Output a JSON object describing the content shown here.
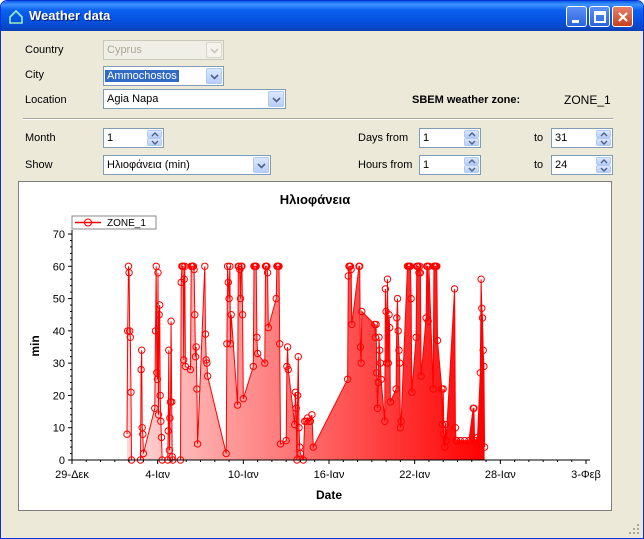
{
  "window": {
    "title": "Weather data"
  },
  "form": {
    "country_label": "Country",
    "country_value": "Cyprus",
    "city_label": "City",
    "city_value": "Ammochostos",
    "location_label": "Location",
    "location_value": "Agia Napa",
    "zone_label": "SBEM weather zone:",
    "zone_value": "ZONE_1",
    "month_label": "Month",
    "month_value": "1",
    "show_label": "Show",
    "show_value": "Ηλιοφάνεια (min)",
    "days_from_label": "Days from",
    "days_from_value": "1",
    "days_to_label": "to",
    "days_to_value": "31",
    "hours_from_label": "Hours from",
    "hours_from_value": "1",
    "hours_to_label": "to",
    "hours_to_value": "24"
  },
  "colors": {
    "series": "#ff0000",
    "fill_light": "#ffd8d8",
    "fill_dark": "#ff0000",
    "titlebar": "#0554e3"
  },
  "chart_data": {
    "type": "area",
    "title": "Ηλιοφάνεια",
    "xlabel": "Date",
    "ylabel": "min",
    "xlim": [
      0,
      36
    ],
    "ylim": [
      0,
      70
    ],
    "x_ticks": [
      0,
      6,
      12,
      18,
      24,
      30,
      36
    ],
    "x_tick_labels": [
      "29-Δεκ",
      "4-Ιαν",
      "10-Ιαν",
      "16-Ιαν",
      "22-Ιαν",
      "28-Ιαν",
      "3-Φεβ"
    ],
    "y_ticks": [
      0,
      10,
      20,
      30,
      40,
      50,
      60,
      70
    ],
    "legend": "top-left",
    "grid": false,
    "series": [
      {
        "name": "ZONE_1",
        "points": [
          [
            3.85,
            8
          ],
          [
            3.9,
            40
          ],
          [
            3.96,
            60
          ],
          [
            4.0,
            58
          ],
          [
            4.04,
            40
          ],
          [
            4.08,
            38
          ],
          [
            4.13,
            21
          ],
          [
            4.17,
            0
          ],
          [
            4.8,
            0
          ],
          [
            4.84,
            28
          ],
          [
            4.88,
            34
          ],
          [
            4.92,
            10
          ],
          [
            4.96,
            8
          ],
          [
            5.0,
            2
          ],
          [
            5.8,
            16
          ],
          [
            5.85,
            40
          ],
          [
            5.9,
            60
          ],
          [
            5.94,
            27
          ],
          [
            5.98,
            25
          ],
          [
            6.02,
            58
          ],
          [
            6.06,
            14
          ],
          [
            6.1,
            45
          ],
          [
            6.14,
            48
          ],
          [
            6.18,
            20
          ],
          [
            6.22,
            12
          ],
          [
            6.27,
            7
          ],
          [
            6.32,
            0
          ],
          [
            6.7,
            0
          ],
          [
            6.74,
            9
          ],
          [
            6.78,
            34
          ],
          [
            6.82,
            3
          ],
          [
            6.86,
            13
          ],
          [
            6.9,
            18
          ],
          [
            6.94,
            43
          ],
          [
            6.98,
            18
          ],
          [
            7.02,
            1
          ],
          [
            7.06,
            0
          ],
          [
            7.6,
            0
          ],
          [
            7.65,
            55
          ],
          [
            7.7,
            60
          ],
          [
            7.74,
            60
          ],
          [
            7.78,
            60
          ],
          [
            7.82,
            31
          ],
          [
            7.86,
            56
          ],
          [
            7.9,
            60
          ],
          [
            7.94,
            29
          ],
          [
            8.3,
            28
          ],
          [
            8.35,
            60
          ],
          [
            8.4,
            60
          ],
          [
            8.45,
            60
          ],
          [
            8.5,
            60
          ],
          [
            8.55,
            59
          ],
          [
            8.6,
            45
          ],
          [
            8.65,
            32
          ],
          [
            8.7,
            35
          ],
          [
            8.75,
            22
          ],
          [
            8.8,
            5
          ],
          [
            9.3,
            60
          ],
          [
            9.35,
            39
          ],
          [
            9.4,
            31
          ],
          [
            9.45,
            30
          ],
          [
            9.5,
            26
          ],
          [
            10.8,
            2
          ],
          [
            10.85,
            36
          ],
          [
            10.9,
            60
          ],
          [
            10.95,
            55
          ],
          [
            11.0,
            50
          ],
          [
            11.05,
            60
          ],
          [
            11.1,
            36
          ],
          [
            11.15,
            45
          ],
          [
            11.6,
            17
          ],
          [
            11.65,
            60
          ],
          [
            11.7,
            60
          ],
          [
            11.75,
            59
          ],
          [
            11.8,
            50
          ],
          [
            11.85,
            60
          ],
          [
            11.9,
            60
          ],
          [
            11.95,
            45
          ],
          [
            12.0,
            19
          ],
          [
            12.7,
            29
          ],
          [
            12.75,
            60
          ],
          [
            12.8,
            60
          ],
          [
            12.85,
            60
          ],
          [
            12.9,
            60
          ],
          [
            12.95,
            38
          ],
          [
            13.0,
            33
          ],
          [
            13.5,
            30
          ],
          [
            13.55,
            60
          ],
          [
            13.6,
            60
          ],
          [
            13.65,
            60
          ],
          [
            13.7,
            58
          ],
          [
            13.75,
            41
          ],
          [
            14.3,
            50
          ],
          [
            14.35,
            60
          ],
          [
            14.4,
            60
          ],
          [
            14.45,
            60
          ],
          [
            14.5,
            60
          ],
          [
            14.55,
            36
          ],
          [
            14.6,
            5
          ],
          [
            15.0,
            6
          ],
          [
            15.05,
            29
          ],
          [
            15.1,
            35
          ],
          [
            15.15,
            28
          ],
          [
            15.6,
            11
          ],
          [
            15.65,
            21
          ],
          [
            15.7,
            16
          ],
          [
            15.75,
            0
          ],
          [
            15.8,
            20
          ],
          [
            15.85,
            32
          ],
          [
            15.9,
            10
          ],
          [
            15.95,
            4
          ],
          [
            16.0,
            2
          ],
          [
            16.2,
            0
          ],
          [
            16.3,
            12
          ],
          [
            16.4,
            12
          ],
          [
            16.5,
            13
          ],
          [
            16.6,
            12
          ],
          [
            16.7,
            12
          ],
          [
            16.8,
            14
          ],
          [
            16.9,
            4
          ],
          [
            19.3,
            25
          ],
          [
            19.35,
            57
          ],
          [
            19.4,
            60
          ],
          [
            19.45,
            60
          ],
          [
            19.5,
            60
          ],
          [
            19.55,
            59
          ],
          [
            19.6,
            42
          ],
          [
            20.1,
            60
          ],
          [
            20.15,
            60
          ],
          [
            20.2,
            35
          ],
          [
            20.25,
            30
          ],
          [
            20.3,
            46
          ],
          [
            21.2,
            42
          ],
          [
            21.25,
            38
          ],
          [
            21.3,
            42
          ],
          [
            21.35,
            27
          ],
          [
            21.4,
            16
          ],
          [
            21.45,
            24
          ],
          [
            21.5,
            38
          ],
          [
            21.55,
            34
          ],
          [
            21.6,
            30
          ],
          [
            21.65,
            25
          ],
          [
            21.9,
            12
          ],
          [
            21.95,
            53
          ],
          [
            22.0,
            46
          ],
          [
            22.05,
            30
          ],
          [
            22.1,
            56
          ],
          [
            22.15,
            30
          ],
          [
            22.2,
            45
          ],
          [
            22.25,
            41
          ],
          [
            22.3,
            18
          ],
          [
            22.7,
            22
          ],
          [
            22.75,
            44
          ],
          [
            22.8,
            50
          ],
          [
            22.85,
            40
          ],
          [
            22.9,
            34
          ],
          [
            22.95,
            30
          ],
          [
            23.0,
            10
          ],
          [
            23.05,
            12
          ],
          [
            23.5,
            60
          ],
          [
            23.55,
            60
          ],
          [
            23.6,
            60
          ],
          [
            23.65,
            60
          ],
          [
            23.7,
            60
          ],
          [
            23.75,
            50
          ],
          [
            23.8,
            21
          ],
          [
            24.1,
            38
          ],
          [
            24.15,
            60
          ],
          [
            24.2,
            60
          ],
          [
            24.25,
            60
          ],
          [
            24.3,
            58
          ],
          [
            24.35,
            60
          ],
          [
            24.4,
            58
          ],
          [
            24.45,
            26
          ],
          [
            24.8,
            44
          ],
          [
            24.85,
            60
          ],
          [
            24.9,
            60
          ],
          [
            24.95,
            43
          ],
          [
            25.0,
            60
          ],
          [
            25.3,
            22
          ],
          [
            25.35,
            60
          ],
          [
            25.4,
            60
          ],
          [
            25.45,
            60
          ],
          [
            25.5,
            60
          ],
          [
            25.55,
            60
          ],
          [
            25.6,
            37
          ],
          [
            25.9,
            22
          ],
          [
            25.95,
            11
          ],
          [
            26.0,
            22
          ],
          [
            26.05,
            8
          ],
          [
            26.1,
            4
          ],
          [
            26.15,
            11
          ],
          [
            26.2,
            6
          ],
          [
            26.8,
            53
          ],
          [
            26.85,
            10
          ],
          [
            26.9,
            6
          ],
          [
            26.95,
            6
          ],
          [
            27.2,
            6
          ],
          [
            27.5,
            6
          ],
          [
            27.8,
            6
          ],
          [
            28.1,
            16
          ],
          [
            28.15,
            16
          ],
          [
            28.2,
            6
          ],
          [
            28.3,
            6
          ],
          [
            28.4,
            7
          ],
          [
            28.6,
            27
          ],
          [
            28.65,
            56
          ],
          [
            28.7,
            47
          ],
          [
            28.75,
            44
          ],
          [
            28.8,
            34
          ],
          [
            28.85,
            29
          ],
          [
            28.9,
            4
          ]
        ]
      }
    ]
  }
}
